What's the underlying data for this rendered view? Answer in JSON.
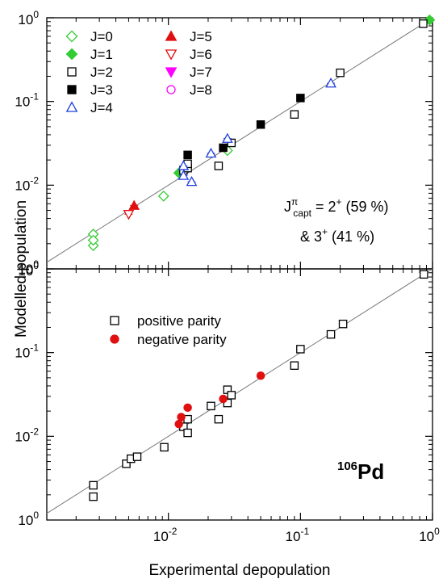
{
  "chart_data": {
    "type": "scatter",
    "x_scale": "log",
    "y_scale": "log",
    "xlabel": "Experimental depopulation",
    "ylabel": "Modelled population",
    "xlim": [
      0.0012,
      1.0
    ],
    "ylim": [
      0.001,
      1.0
    ],
    "x_tick_labels": [
      "10^-2",
      "10^-1",
      "10^0"
    ],
    "y_tick_labels": [
      "10^-2",
      "10^-1",
      "10^0"
    ],
    "reference_line": "y = x",
    "panels": [
      {
        "name": "top",
        "legend": [
          {
            "label": "J=0",
            "color": "#33cc33",
            "marker": "diamond",
            "fill": "open"
          },
          {
            "label": "J=1",
            "color": "#33cc33",
            "marker": "diamond",
            "fill": "filled"
          },
          {
            "label": "J=2",
            "color": "#000000",
            "marker": "square",
            "fill": "open"
          },
          {
            "label": "J=3",
            "color": "#000000",
            "marker": "square",
            "fill": "filled"
          },
          {
            "label": "J=4",
            "color": "#1f3fdd",
            "marker": "triangle-up",
            "fill": "open"
          },
          {
            "label": "J=5",
            "color": "#e01010",
            "marker": "triangle-up",
            "fill": "filled"
          },
          {
            "label": "J=6",
            "color": "#e01010",
            "marker": "triangle-down",
            "fill": "open"
          },
          {
            "label": "J=7",
            "color": "#ff00ff",
            "marker": "triangle-down",
            "fill": "filled"
          },
          {
            "label": "J=8",
            "color": "#ff00ff",
            "marker": "circle",
            "fill": "open"
          }
        ],
        "annotation": {
          "line1_prefix": "J",
          "line1_sup": "π",
          "line1_sub": "capt",
          "line1_text": " = 2",
          "line1_sup2": "+",
          "line1_tail": " (59 %)",
          "line2_text": "& 3",
          "line2_sup": "+",
          "line2_tail": " (41 %)"
        },
        "series": [
          {
            "name": "J=0",
            "points": [
              [
                0.0027,
                0.0026
              ],
              [
                0.0027,
                0.0019
              ],
              [
                0.0027,
                0.0022
              ],
              [
                0.0092,
                0.0074
              ],
              [
                0.028,
                0.026
              ]
            ]
          },
          {
            "name": "J=1",
            "points": [
              [
                0.012,
                0.014
              ],
              [
                0.95,
                0.94
              ]
            ]
          },
          {
            "name": "J=2",
            "points": [
              [
                0.013,
                0.015
              ],
              [
                0.014,
                0.016
              ],
              [
                0.014,
                0.018
              ],
              [
                0.024,
                0.017
              ],
              [
                0.03,
                0.032
              ],
              [
                0.09,
                0.07
              ],
              [
                0.2,
                0.22
              ],
              [
                0.85,
                0.85
              ]
            ]
          },
          {
            "name": "J=3",
            "points": [
              [
                0.014,
                0.023
              ],
              [
                0.026,
                0.028
              ],
              [
                0.05,
                0.053
              ],
              [
                0.1,
                0.11
              ]
            ]
          },
          {
            "name": "J=4",
            "points": [
              [
                0.013,
                0.017
              ],
              [
                0.013,
                0.013
              ],
              [
                0.015,
                0.011
              ],
              [
                0.021,
                0.024
              ],
              [
                0.028,
                0.036
              ],
              [
                0.17,
                0.165
              ]
            ]
          },
          {
            "name": "J=5",
            "points": [
              [
                0.0055,
                0.0057
              ]
            ]
          },
          {
            "name": "J=6",
            "points": [
              [
                0.005,
                0.0045
              ]
            ]
          },
          {
            "name": "J=7",
            "points": []
          },
          {
            "name": "J=8",
            "points": []
          }
        ]
      },
      {
        "name": "bottom",
        "legend": [
          {
            "label": "positive parity",
            "color": "#000000",
            "marker": "square",
            "fill": "open"
          },
          {
            "label": "negative parity",
            "color": "#e01010",
            "marker": "circle",
            "fill": "filled"
          }
        ],
        "isotope": {
          "mass": "106",
          "symbol": "Pd"
        },
        "series": [
          {
            "name": "positive parity",
            "points": [
              [
                0.0027,
                0.0026
              ],
              [
                0.0027,
                0.0019
              ],
              [
                0.0048,
                0.0047
              ],
              [
                0.0052,
                0.0054
              ],
              [
                0.0058,
                0.0057
              ],
              [
                0.0093,
                0.0074
              ],
              [
                0.013,
                0.013
              ],
              [
                0.014,
                0.016
              ],
              [
                0.014,
                0.011
              ],
              [
                0.021,
                0.023
              ],
              [
                0.024,
                0.016
              ],
              [
                0.028,
                0.025
              ],
              [
                0.028,
                0.036
              ],
              [
                0.03,
                0.031
              ],
              [
                0.09,
                0.07
              ],
              [
                0.1,
                0.11
              ],
              [
                0.17,
                0.165
              ],
              [
                0.21,
                0.22
              ],
              [
                0.86,
                0.86
              ]
            ]
          },
          {
            "name": "negative parity",
            "points": [
              [
                0.012,
                0.014
              ],
              [
                0.0125,
                0.017
              ],
              [
                0.014,
                0.022
              ],
              [
                0.026,
                0.028
              ],
              [
                0.05,
                0.053
              ]
            ]
          }
        ]
      }
    ]
  }
}
